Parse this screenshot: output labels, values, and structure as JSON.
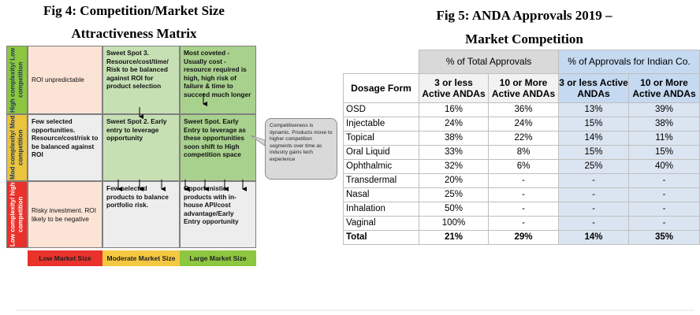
{
  "figure4": {
    "title": [
      "Fig 4: Competition/Market Size",
      "Attractiveness Matrix"
    ],
    "row_labels": [
      "High complexity/ Low competition",
      "Mod complexity/ Mod competition",
      "Low complexity/ high competition"
    ],
    "cells": [
      [
        "ROI unpredictable",
        "Sweet Spot 3. Resource/cost/time/ Risk to be balanced against ROI for product selection",
        "Most coveted - Usually cost -resource required is high, high risk of failure & time to succeed much longer"
      ],
      [
        "Few selected opportunities. Resource/cost/risk to be balanced against ROI",
        "Sweet Spot 2. Early entry to leverage opportunity",
        "Sweet Spot. Early Entry to leverage as these opportunities soon shift to High competition space"
      ],
      [
        "Risky investment. ROI likely to be negative",
        "Few selected products to balance portfolio risk.",
        "Opportunistic products with in-house API/cost advantage/Early Entry opportunity"
      ]
    ],
    "column_labels": [
      "Low Market Size",
      "Moderate Market Size",
      "Large Market Size"
    ],
    "callout": "Competitiveness is dynamic. Products move to higher competition segments over time as industry gains tech experience"
  },
  "figure5": {
    "title": [
      "Fig 5: ANDA Approvals 2019 –",
      "Market Competition"
    ],
    "group_headers": [
      "% of Total Approvals",
      "% of Approvals for Indian Co."
    ],
    "column_headers": [
      "Dosage Form",
      "3 or less Active ANDAs",
      "10 or More Active ANDAs",
      "3 or less Active ANDAs",
      "10 or More Active ANDAs"
    ],
    "rows": [
      [
        "OSD",
        "16%",
        "36%",
        "13%",
        "39%"
      ],
      [
        "Injectable",
        "24%",
        "24%",
        "15%",
        "38%"
      ],
      [
        "Topical",
        "38%",
        "22%",
        "14%",
        "11%"
      ],
      [
        "Oral Liquid",
        "33%",
        "8%",
        "15%",
        "15%"
      ],
      [
        "Ophthalmic",
        "32%",
        "6%",
        "25%",
        "40%"
      ],
      [
        "Transdermal",
        "20%",
        "-",
        "-",
        "-"
      ],
      [
        "Nasal",
        "25%",
        "-",
        "-",
        "-"
      ],
      [
        "Inhalation",
        "50%",
        "-",
        "-",
        "-"
      ],
      [
        "Vaginal",
        "100%",
        "-",
        "-",
        "-"
      ]
    ],
    "total": [
      "Total",
      "21%",
      "29%",
      "14%",
      "35%"
    ]
  }
}
